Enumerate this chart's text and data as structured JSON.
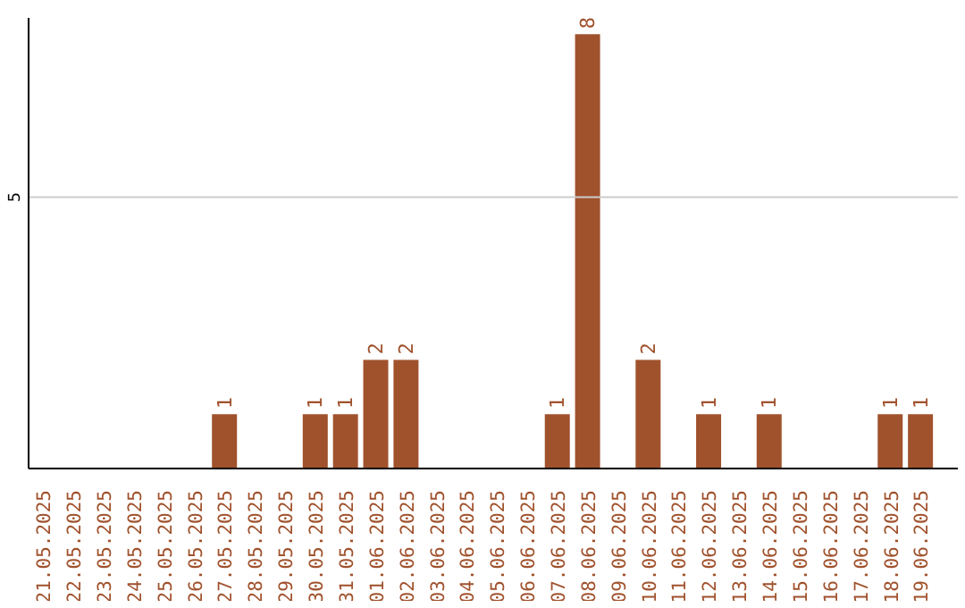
{
  "chart_data": {
    "type": "bar",
    "categories": [
      "21.05.2025",
      "22.05.2025",
      "23.05.2025",
      "24.05.2025",
      "25.05.2025",
      "26.05.2025",
      "27.05.2025",
      "28.05.2025",
      "29.05.2025",
      "30.05.2025",
      "31.05.2025",
      "01.06.2025",
      "02.06.2025",
      "03.06.2025",
      "04.06.2025",
      "05.06.2025",
      "06.06.2025",
      "07.06.2025",
      "08.06.2025",
      "09.06.2025",
      "10.06.2025",
      "11.06.2025",
      "12.06.2025",
      "13.06.2025",
      "14.06.2025",
      "15.06.2025",
      "16.06.2025",
      "17.06.2025",
      "18.06.2025",
      "19.06.2025"
    ],
    "values": [
      0,
      0,
      0,
      0,
      0,
      0,
      1,
      0,
      0,
      1,
      1,
      2,
      2,
      0,
      0,
      0,
      0,
      1,
      8,
      0,
      2,
      0,
      1,
      0,
      1,
      0,
      0,
      0,
      1,
      1
    ],
    "value_labels": [
      null,
      null,
      null,
      null,
      null,
      null,
      "1",
      null,
      null,
      "1",
      "1",
      "2",
      "2",
      null,
      null,
      null,
      null,
      "1",
      "8",
      null,
      "2",
      null,
      "1",
      null,
      "1",
      null,
      null,
      null,
      "1",
      "1"
    ],
    "color": "#a0522d",
    "ylim": [
      0,
      8.3
    ],
    "yticks": [
      5
    ],
    "grid": "y"
  }
}
